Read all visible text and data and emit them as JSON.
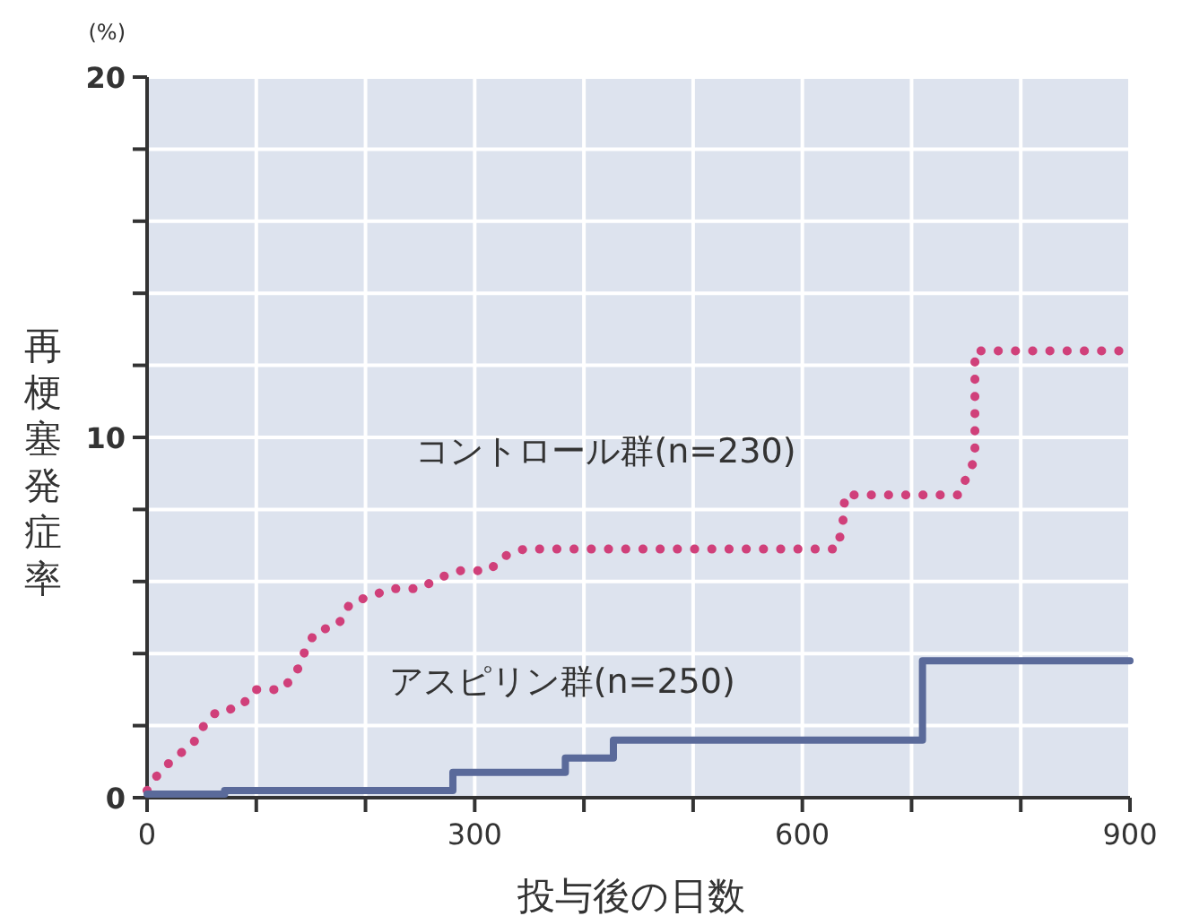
{
  "chart_data": {
    "type": "line",
    "xlabel": "投与後の日数",
    "ylabel": "再梗塞発症率",
    "annotations": [
      "(%)"
    ],
    "xlim": [
      0,
      900
    ],
    "ylim": [
      0,
      20
    ],
    "xticks": [
      0,
      {
        "value": 100,
        "label": null
      },
      {
        "value": 200,
        "label": null
      },
      300,
      {
        "value": 400,
        "label": null
      },
      {
        "value": 500,
        "label": null
      },
      600,
      {
        "value": 700,
        "label": null
      },
      {
        "value": 800,
        "label": null
      },
      900
    ],
    "yticks": [
      0,
      {
        "value": 2,
        "label": null
      },
      {
        "value": 4,
        "label": null
      },
      {
        "value": 6,
        "label": null
      },
      {
        "value": 8,
        "label": null
      },
      10,
      {
        "value": 12,
        "label": null
      },
      {
        "value": 14,
        "label": null
      },
      {
        "value": 16,
        "label": null
      },
      {
        "value": 18,
        "label": null
      },
      20
    ],
    "grid": true,
    "series": [
      {
        "name": "コントロール群(n=230)",
        "color": "#d0407a",
        "line_style": "dotted",
        "x": [
          0,
          11,
          25,
          42,
          52,
          64,
          85,
          99,
          124,
          137,
          145,
          154,
          175,
          186,
          224,
          250,
          267,
          287,
          313,
          327,
          345,
          632,
          637,
          639,
          743,
          758,
          758,
          900
        ],
        "values": [
          0.2,
          0.7,
          1.1,
          1.5,
          2.0,
          2.4,
          2.5,
          3.0,
          3.0,
          3.5,
          4.1,
          4.6,
          4.8,
          5.4,
          5.8,
          5.8,
          6.1,
          6.3,
          6.3,
          6.7,
          6.9,
          6.9,
          7.6,
          8.4,
          8.4,
          9.4,
          12.4,
          12.4
        ]
      },
      {
        "name": "アスピリン群(n=250)",
        "color": "#5a6a9a",
        "type": "step",
        "line_style": "solid",
        "x": [
          0,
          71,
          280,
          383,
          427,
          710,
          900
        ],
        "values": [
          0.1,
          0.2,
          0.7,
          1.1,
          1.6,
          3.8,
          3.8
        ]
      }
    ]
  }
}
